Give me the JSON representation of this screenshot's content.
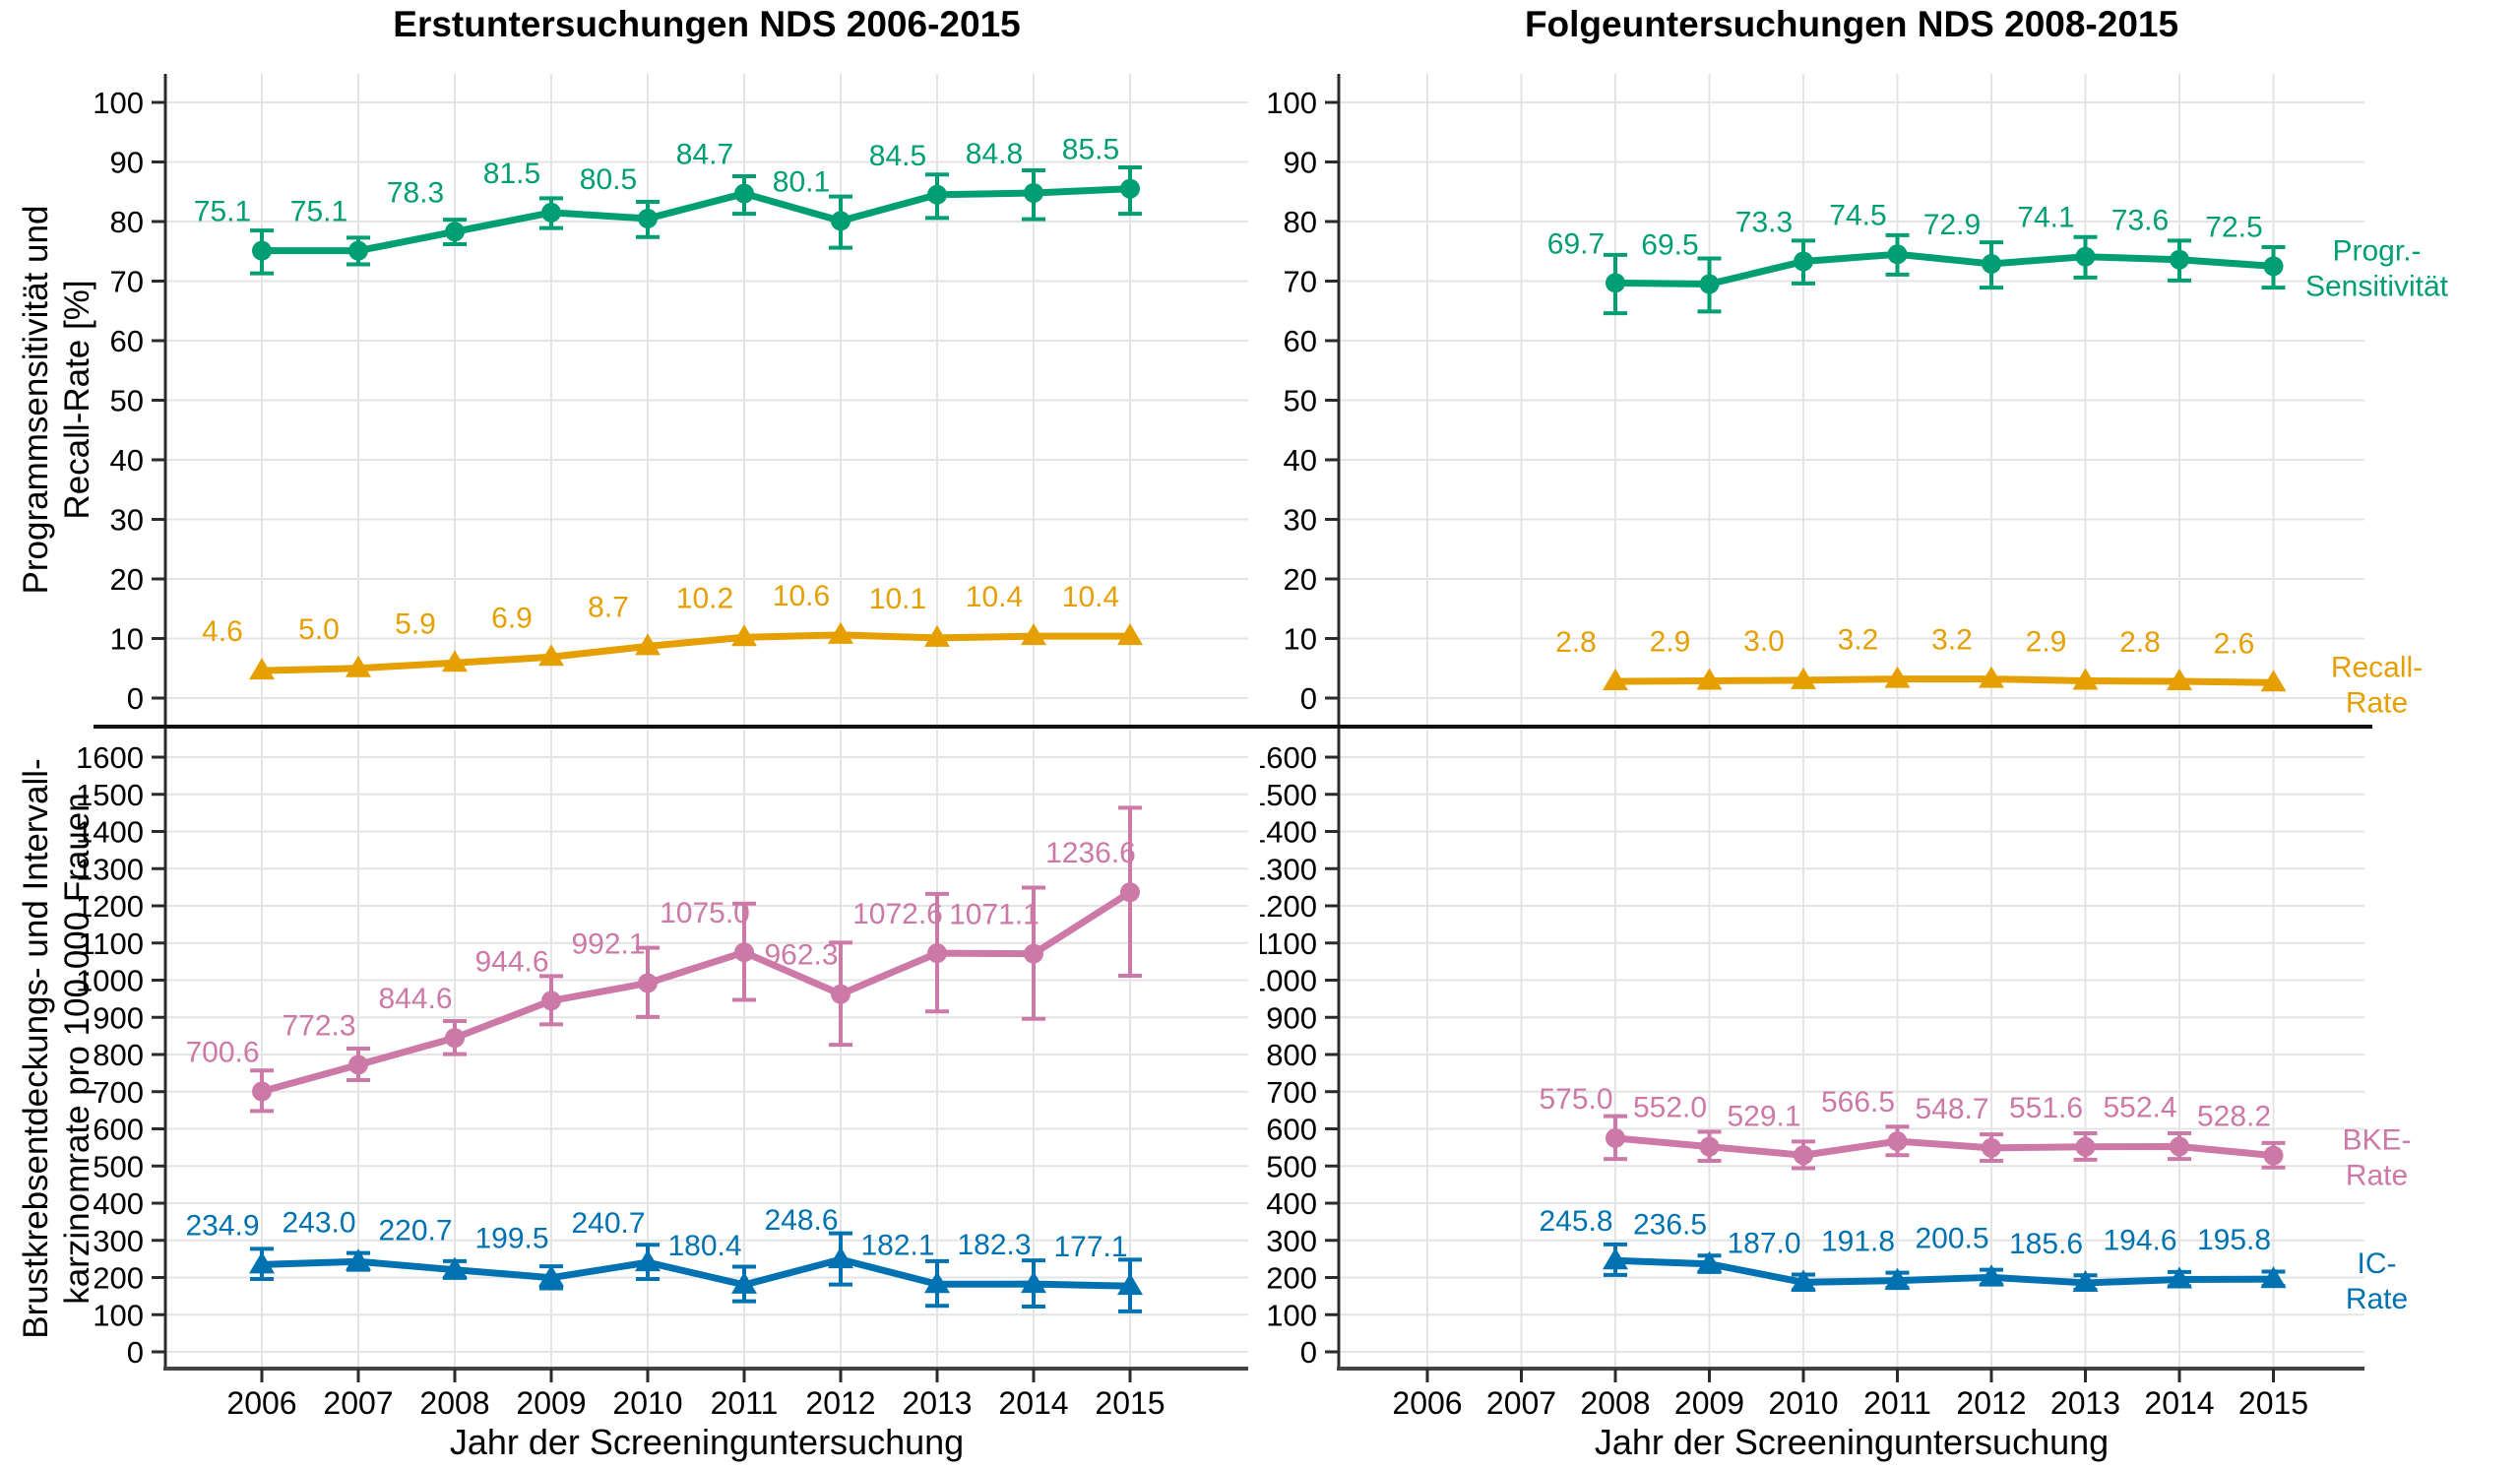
{
  "xlabel": "Jahr der Screeninguntersuchung",
  "x_ticks": [
    2006,
    2007,
    2008,
    2009,
    2010,
    2011,
    2012,
    2013,
    2014,
    2015
  ],
  "colors": {
    "sensitivity_green": "#009E73",
    "recall_gold": "#E69F00",
    "bke_pink": "#CC79A7",
    "ic_blue": "#0072B2",
    "grid": "#E4E4E4",
    "axis": "#2b2b2b"
  },
  "chart_data": [
    {
      "panel": "left",
      "type": "line",
      "title": "Erstuntersuchungen NDS 2006-2015",
      "facets": [
        {
          "ylabel_line1": "Programmsensitivität und",
          "ylabel_line2": "Recall-Rate [%]",
          "ylim": [
            0,
            100
          ],
          "ytick_step": 10,
          "series": [
            {
              "name": "Progr.-Sensitivität",
              "color": "#009E73",
              "marker": "circle",
              "years": [
                2006,
                2007,
                2008,
                2009,
                2010,
                2011,
                2012,
                2013,
                2014,
                2015
              ],
              "values": [
                75.1,
                75.1,
                78.3,
                81.5,
                80.5,
                84.7,
                80.1,
                84.5,
                84.8,
                85.5
              ],
              "ci_low": [
                71.3,
                72.8,
                76.2,
                78.9,
                77.4,
                81.3,
                75.6,
                80.6,
                80.4,
                81.3
              ],
              "ci_high": [
                78.5,
                77.3,
                80.3,
                83.9,
                83.3,
                87.6,
                84.2,
                87.9,
                88.6,
                89.1
              ]
            },
            {
              "name": "Recall-Rate",
              "color": "#E69F00",
              "marker": "triangle",
              "years": [
                2006,
                2007,
                2008,
                2009,
                2010,
                2011,
                2012,
                2013,
                2014,
                2015
              ],
              "values": [
                4.6,
                5.0,
                5.9,
                6.9,
                8.7,
                10.2,
                10.6,
                10.1,
                10.4,
                10.4
              ]
            }
          ]
        },
        {
          "ylabel_line1": "Brustkrebsentdeckungs- und Intervall-",
          "ylabel_line2": "karzinomrate pro 100.000 Frauen",
          "ylim": [
            0,
            1600
          ],
          "ytick_step": 100,
          "series": [
            {
              "name": "BKE-Rate",
              "color": "#CC79A7",
              "marker": "circle",
              "years": [
                2006,
                2007,
                2008,
                2009,
                2010,
                2011,
                2012,
                2013,
                2014,
                2015
              ],
              "values": [
                700.6,
                772.3,
                844.6,
                944.6,
                992.1,
                1075.0,
                962.3,
                1072.6,
                1071.1,
                1236.6
              ],
              "ci_low": [
                648,
                731,
                801,
                881,
                901,
                947,
                826,
                916,
                896,
                1012
              ],
              "ci_high": [
                757,
                816,
                890,
                1011,
                1087,
                1206,
                1101,
                1232,
                1249,
                1464
              ]
            },
            {
              "name": "IC-Rate",
              "color": "#0072B2",
              "marker": "triangle",
              "years": [
                2006,
                2007,
                2008,
                2009,
                2010,
                2011,
                2012,
                2013,
                2014,
                2015
              ],
              "values": [
                234.9,
                243.0,
                220.7,
                199.5,
                240.7,
                180.4,
                248.6,
                182.1,
                182.3,
                177.1
              ],
              "ci_low": [
                196,
                221,
                199,
                171,
                196,
                136,
                181,
                124,
                122,
                109
              ],
              "ci_high": [
                277,
                266,
                244,
                230,
                288,
                229,
                319,
                244,
                246,
                248
              ]
            }
          ]
        }
      ]
    },
    {
      "panel": "right",
      "type": "line",
      "title": "Folgeuntersuchungen NDS 2008-2015",
      "facets": [
        {
          "ylim": [
            0,
            100
          ],
          "ytick_step": 10,
          "series": [
            {
              "name": "Progr.-Sensitivität",
              "color": "#009E73",
              "marker": "circle",
              "end_label_line1": "Progr.-",
              "end_label_line2": "Sensitivität",
              "years": [
                2008,
                2009,
                2010,
                2011,
                2012,
                2013,
                2014,
                2015
              ],
              "values": [
                69.7,
                69.5,
                73.3,
                74.5,
                72.9,
                74.1,
                73.6,
                72.5
              ],
              "ci_low": [
                64.6,
                64.9,
                69.6,
                71.1,
                68.9,
                70.6,
                70.1,
                68.9
              ],
              "ci_high": [
                74.4,
                73.8,
                76.8,
                77.7,
                76.5,
                77.4,
                76.8,
                75.7
              ]
            },
            {
              "name": "Recall-Rate",
              "color": "#E69F00",
              "marker": "triangle",
              "end_label_line1": "Recall-",
              "end_label_line2": "Rate",
              "years": [
                2008,
                2009,
                2010,
                2011,
                2012,
                2013,
                2014,
                2015
              ],
              "values": [
                2.8,
                2.9,
                3.0,
                3.2,
                3.2,
                2.9,
                2.8,
                2.6
              ]
            }
          ]
        },
        {
          "ylim": [
            0,
            1600
          ],
          "ytick_step": 100,
          "series": [
            {
              "name": "BKE-Rate",
              "color": "#CC79A7",
              "marker": "circle",
              "end_label_line1": "BKE-",
              "end_label_line2": "Rate",
              "years": [
                2008,
                2009,
                2010,
                2011,
                2012,
                2013,
                2014,
                2015
              ],
              "values": [
                575.0,
                552.0,
                529.1,
                566.5,
                548.7,
                551.6,
                552.4,
                528.2
              ],
              "ci_low": [
                519,
                514,
                494,
                529,
                514,
                517,
                519,
                496
              ],
              "ci_high": [
                634,
                592,
                566,
                606,
                585,
                588,
                588,
                562
              ]
            },
            {
              "name": "IC-Rate",
              "color": "#0072B2",
              "marker": "triangle",
              "end_label_line1": "IC-",
              "end_label_line2": "Rate",
              "years": [
                2008,
                2009,
                2010,
                2011,
                2012,
                2013,
                2014,
                2015
              ],
              "values": [
                245.8,
                236.5,
                187.0,
                191.8,
                200.5,
                185.6,
                194.6,
                195.8
              ],
              "ci_low": [
                207,
                215,
                167,
                172,
                181,
                167,
                176,
                177
              ],
              "ci_high": [
                289,
                259,
                208,
                213,
                221,
                206,
                215,
                216
              ]
            }
          ]
        }
      ]
    }
  ]
}
